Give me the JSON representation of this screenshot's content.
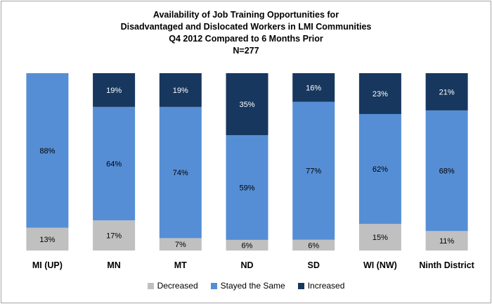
{
  "chart_data": {
    "type": "bar",
    "stacked": true,
    "percent_stacked": true,
    "title_lines": [
      "Availability of Job Training Opportunities for",
      "Disadvantaged  and Dislocated Workers in LMI Communities",
      "Q4 2012 Compared to 6 Months Prior",
      "N=277"
    ],
    "categories": [
      "MI (UP)",
      "MN",
      "MT",
      "ND",
      "SD",
      "WI (NW)",
      "Ninth District"
    ],
    "series": [
      {
        "name": "Decreased",
        "color": "#c0c0c0",
        "label_color": "#000000",
        "values": [
          13,
          17,
          7,
          6,
          6,
          15,
          11
        ]
      },
      {
        "name": "Stayed the Same",
        "color": "#558ed5",
        "label_color": "#000000",
        "values": [
          88,
          64,
          74,
          59,
          77,
          62,
          68
        ]
      },
      {
        "name": "Increased",
        "color": "#17375e",
        "label_color": "#ffffff",
        "values": [
          null,
          19,
          19,
          35,
          16,
          23,
          21
        ]
      }
    ],
    "data_labels": [
      [
        "13%",
        "17%",
        "7%",
        "6%",
        "6%",
        "15%",
        "11%"
      ],
      [
        "88%",
        "64%",
        "74%",
        "59%",
        "77%",
        "62%",
        "68%"
      ],
      [
        "",
        "19%",
        "19%",
        "35%",
        "16%",
        "23%",
        "21%"
      ]
    ],
    "legend_position": "bottom",
    "grid": false
  }
}
